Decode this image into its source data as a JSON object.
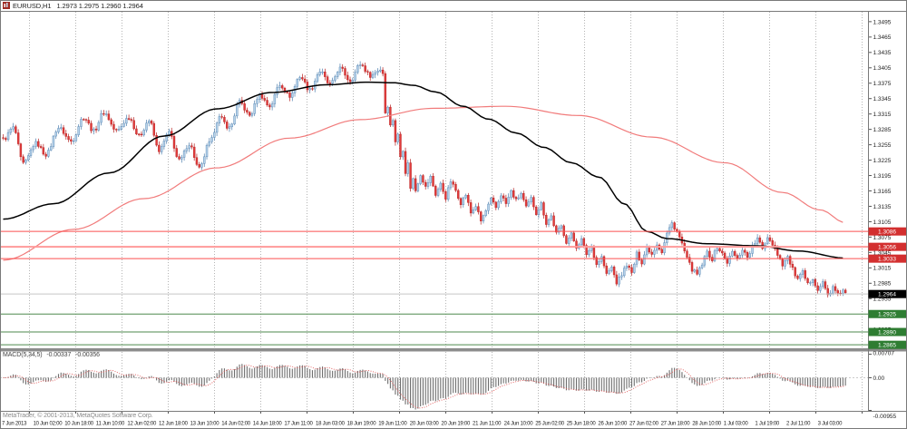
{
  "header": {
    "symbol_timeframe": "EURUSD,H1",
    "quote_string": "1.2973 1.2975 1.2960 1.2964"
  },
  "footer": {
    "credit": "MetaTrader, © 2001-2013, MetaQuotes Software Corp."
  },
  "chart_data": {
    "type": "candlestick",
    "title": "EURUSD,H1",
    "symbol": "EURUSD",
    "timeframe": "H1",
    "ohlc_quote": {
      "open": "1.2973",
      "high": "1.2975",
      "low": "1.2960",
      "close": "1.2964"
    },
    "price_axis": {
      "visible_max": 1.3516,
      "visible_min": 1.286,
      "tick_step": 0.003,
      "ticks": [
        "1.3495",
        "1.3465",
        "1.3435",
        "1.3405",
        "1.3375",
        "1.3345",
        "1.3315",
        "1.3285",
        "1.3255",
        "1.3225",
        "1.3195",
        "1.3165",
        "1.3135",
        "1.3105",
        "1.3075",
        "1.3045",
        "1.3015",
        "1.2985",
        "1.2955",
        "1.2925",
        "1.2895",
        "1.2865"
      ]
    },
    "time_axis": {
      "labels": [
        "7 Jun 2013",
        "10 Jun 02:00",
        "10 Jun 18:00",
        "11 Jun 10:00",
        "12 Jun 02:00",
        "12 Jun 18:00",
        "13 Jun 10:00",
        "14 Jun 02:00",
        "14 Jun 18:00",
        "17 Jun 11:00",
        "18 Jun 03:00",
        "18 Jun 19:00",
        "19 Jun 11:00",
        "20 Jun 03:00",
        "20 Jun 19:00",
        "21 Jun 11:00",
        "24 Jun 10:00",
        "25 Jun 02:00",
        "25 Jun 18:00",
        "26 Jun 10:00",
        "27 Jun 02:00",
        "27 Jun 18:00",
        "28 Jun 10:00",
        "1 Jul 03:00",
        "1 Jul 19:00",
        "2 Jul 11:00",
        "3 Jul 03:00"
      ]
    },
    "levels": {
      "resistance": [
        {
          "price": 1.3086,
          "label": "1.3086",
          "width": 1
        },
        {
          "price": 1.3056,
          "label": "1.3056",
          "width": 2
        },
        {
          "price": 1.3033,
          "label": "1.3033",
          "width": 1
        }
      ],
      "support": [
        {
          "price": 1.2925,
          "label": "1.2925",
          "width": 1
        },
        {
          "price": 1.289,
          "label": "1.2890",
          "width": 1
        },
        {
          "price": 1.2865,
          "label": "1.2865",
          "width": 1
        }
      ],
      "current": {
        "price": 1.2964,
        "label": "1.2964"
      }
    },
    "colors": {
      "candle_up": "#b5d2ea",
      "candle_up_border": "#4d7ead",
      "candle_down": "#e13b3b",
      "candle_down_border": "#b52020",
      "ma_black": "#000000",
      "ma_red": "#f17b7b",
      "resistance_line": "#fb4f4f",
      "resistance_badge": "#d32f2f",
      "support_line": "#4e8a4e",
      "support_badge": "#2e7d32",
      "current_line": "#c8c8c8",
      "current_badge": "#000000",
      "grid": "#b4b4b4",
      "macd_bar": "#6e6e6e",
      "macd_signal": "#e05555"
    },
    "candles": {
      "count": 336,
      "close_path": [
        [
          0,
          1.3265
        ],
        [
          4,
          1.3288
        ],
        [
          8,
          1.3218
        ],
        [
          13,
          1.3258
        ],
        [
          17,
          1.3236
        ],
        [
          22,
          1.3288
        ],
        [
          27,
          1.3262
        ],
        [
          32,
          1.3308
        ],
        [
          36,
          1.3282
        ],
        [
          40,
          1.3318
        ],
        [
          45,
          1.3282
        ],
        [
          50,
          1.3308
        ],
        [
          54,
          1.3272
        ],
        [
          58,
          1.3302
        ],
        [
          62,
          1.3244
        ],
        [
          66,
          1.3278
        ],
        [
          70,
          1.3224
        ],
        [
          74,
          1.3256
        ],
        [
          78,
          1.3208
        ],
        [
          82,
          1.3258
        ],
        [
          86,
          1.3308
        ],
        [
          90,
          1.3288
        ],
        [
          94,
          1.3338
        ],
        [
          98,
          1.3312
        ],
        [
          102,
          1.3352
        ],
        [
          106,
          1.333
        ],
        [
          110,
          1.3372
        ],
        [
          114,
          1.335
        ],
        [
          118,
          1.3388
        ],
        [
          122,
          1.3362
        ],
        [
          126,
          1.3398
        ],
        [
          130,
          1.3372
        ],
        [
          134,
          1.3404
        ],
        [
          138,
          1.338
        ],
        [
          142,
          1.3412
        ],
        [
          146,
          1.339
        ],
        [
          150,
          1.3402
        ],
        [
          151,
          1.3395
        ],
        [
          152,
          1.3318
        ],
        [
          153,
          1.3332
        ],
        [
          154,
          1.3292
        ],
        [
          155,
          1.3304
        ],
        [
          156,
          1.3262
        ],
        [
          157,
          1.3274
        ],
        [
          158,
          1.3232
        ],
        [
          159,
          1.3246
        ],
        [
          160,
          1.3202
        ],
        [
          161,
          1.3218
        ],
        [
          162,
          1.3172
        ],
        [
          163,
          1.3188
        ],
        [
          164,
          1.3166
        ],
        [
          166,
          1.3198
        ],
        [
          168,
          1.3172
        ],
        [
          170,
          1.3192
        ],
        [
          172,
          1.3158
        ],
        [
          174,
          1.3178
        ],
        [
          176,
          1.3152
        ],
        [
          178,
          1.3184
        ],
        [
          180,
          1.3166
        ],
        [
          182,
          1.3142
        ],
        [
          184,
          1.3158
        ],
        [
          186,
          1.3122
        ],
        [
          188,
          1.3136
        ],
        [
          190,
          1.3106
        ],
        [
          192,
          1.3126
        ],
        [
          194,
          1.3148
        ],
        [
          196,
          1.3132
        ],
        [
          198,
          1.3158
        ],
        [
          200,
          1.314
        ],
        [
          202,
          1.3164
        ],
        [
          204,
          1.3146
        ],
        [
          206,
          1.316
        ],
        [
          208,
          1.3132
        ],
        [
          210,
          1.315
        ],
        [
          212,
          1.3122
        ],
        [
          214,
          1.314
        ],
        [
          216,
          1.3102
        ],
        [
          218,
          1.3116
        ],
        [
          220,
          1.3082
        ],
        [
          222,
          1.3096
        ],
        [
          224,
          1.3066
        ],
        [
          226,
          1.308
        ],
        [
          228,
          1.3056
        ],
        [
          230,
          1.307
        ],
        [
          232,
          1.3042
        ],
        [
          234,
          1.3056
        ],
        [
          236,
          1.3022
        ],
        [
          238,
          1.3036
        ],
        [
          240,
          1.3002
        ],
        [
          242,
          1.3016
        ],
        [
          244,
          1.2986
        ],
        [
          246,
          1.3002
        ],
        [
          248,
          1.3022
        ],
        [
          250,
          1.3004
        ],
        [
          252,
          1.3042
        ],
        [
          254,
          1.3026
        ],
        [
          256,
          1.3056
        ],
        [
          258,
          1.3042
        ],
        [
          260,
          1.3062
        ],
        [
          262,
          1.3046
        ],
        [
          264,
          1.3082
        ],
        [
          266,
          1.3102
        ],
        [
          268,
          1.3086
        ],
        [
          270,
          1.3062
        ],
        [
          272,
          1.3032
        ],
        [
          274,
          1.3012
        ],
        [
          276,
          1.3002
        ],
        [
          278,
          1.3022
        ],
        [
          280,
          1.3046
        ],
        [
          282,
          1.3032
        ],
        [
          284,
          1.3056
        ],
        [
          286,
          1.3042
        ],
        [
          288,
          1.3026
        ],
        [
          290,
          1.3046
        ],
        [
          292,
          1.3032
        ],
        [
          294,
          1.3052
        ],
        [
          296,
          1.3036
        ],
        [
          298,
          1.3056
        ],
        [
          300,
          1.3072
        ],
        [
          302,
          1.3052
        ],
        [
          304,
          1.3076
        ],
        [
          306,
          1.3062
        ],
        [
          308,
          1.3042
        ],
        [
          310,
          1.3022
        ],
        [
          312,
          1.3036
        ],
        [
          314,
          1.3012
        ],
        [
          316,
          1.2992
        ],
        [
          318,
          1.3006
        ],
        [
          320,
          1.2982
        ],
        [
          322,
          1.2996
        ],
        [
          324,
          1.2972
        ],
        [
          326,
          1.2986
        ],
        [
          328,
          1.2962
        ],
        [
          330,
          1.2976
        ],
        [
          332,
          1.2962
        ],
        [
          334,
          1.2973
        ],
        [
          335,
          1.2964
        ]
      ]
    },
    "ma_fast_black": [
      [
        0,
        1.311
      ],
      [
        20,
        1.314
      ],
      [
        42,
        1.32
      ],
      [
        64,
        1.3272
      ],
      [
        85,
        1.3325
      ],
      [
        107,
        1.3357
      ],
      [
        129,
        1.3372
      ],
      [
        145,
        1.3377
      ],
      [
        155,
        1.3376
      ],
      [
        163,
        1.3371
      ],
      [
        172,
        1.3358
      ],
      [
        183,
        1.333
      ],
      [
        193,
        1.3305
      ],
      [
        204,
        1.3278
      ],
      [
        215,
        1.325
      ],
      [
        226,
        1.322
      ],
      [
        237,
        1.3192
      ],
      [
        247,
        1.314
      ],
      [
        256,
        1.3086
      ],
      [
        264,
        1.3072
      ],
      [
        280,
        1.3062
      ],
      [
        300,
        1.3058
      ],
      [
        316,
        1.3048
      ],
      [
        335,
        1.3034
      ]
    ],
    "ma_slow_red": [
      [
        0,
        1.303
      ],
      [
        28,
        1.309
      ],
      [
        56,
        1.315
      ],
      [
        85,
        1.321
      ],
      [
        114,
        1.3268
      ],
      [
        142,
        1.3304
      ],
      [
        171,
        1.3326
      ],
      [
        200,
        1.333
      ],
      [
        229,
        1.3312
      ],
      [
        258,
        1.327
      ],
      [
        287,
        1.322
      ],
      [
        310,
        1.3162
      ],
      [
        325,
        1.3128
      ],
      [
        335,
        1.3103
      ]
    ],
    "macd": {
      "label": "MACD(5,34,5)",
      "value_main": "-0.00337",
      "value_signal": "-0.00356",
      "fast": 5,
      "slow": 34,
      "signal_period": 5,
      "scale_labels": [
        "0.00707",
        "0.00",
        "-0.00955"
      ],
      "scale_values": [
        0.00707,
        0,
        -0.00955
      ]
    }
  }
}
